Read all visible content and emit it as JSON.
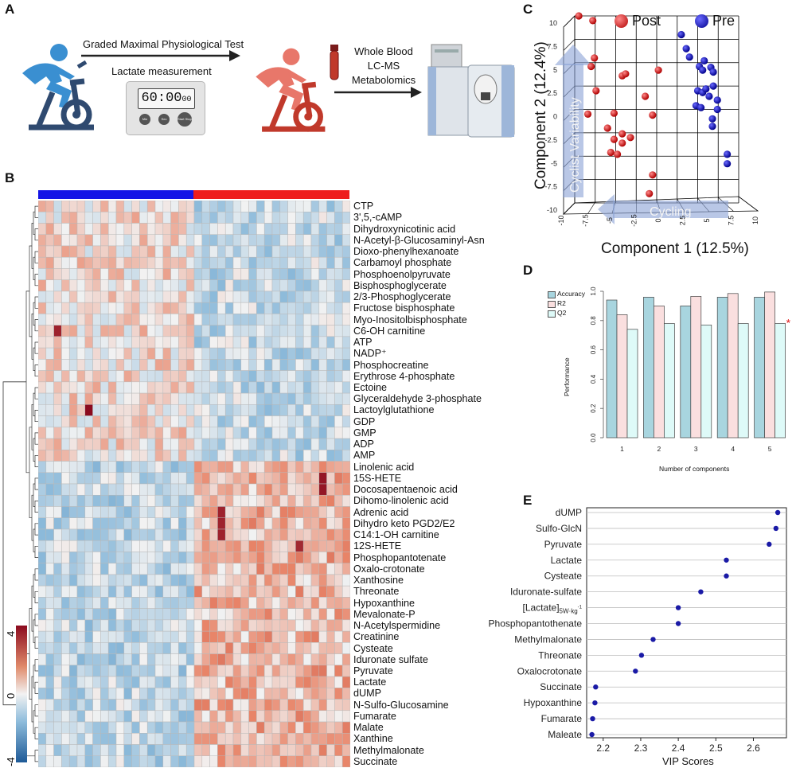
{
  "panel_letters": {
    "a": "A",
    "b": "B",
    "c": "C",
    "d": "D",
    "e": "E"
  },
  "panel_a": {
    "test_label": "Graded Maximal Physiological Test",
    "lactate_label": "Lactate measurement",
    "timer_display": "60:00",
    "timer_small": "00",
    "timer_buttons": [
      "Min",
      "Sec",
      "Start Stop"
    ],
    "blood_line1": "Whole Blood",
    "blood_line2": "LC-MS",
    "blood_line3": "Metabolomics",
    "colors": {
      "pre_cyclist": "#3a8fd1",
      "post_cyclist": "#e8776a",
      "bike_pre": "#2f4a70",
      "bike_post": "#c0392b"
    }
  },
  "chart_data": [
    {
      "type": "heatmap",
      "panel": "B",
      "rows": [
        "CTP",
        "3',5,-cAMP",
        "Dihydroxynicotinic acid",
        "N-Acetyl-β-Glucosaminyl-Asn",
        "Dioxo-phenylhexanoate",
        "Carbamoyl phosphate",
        "Phosphoenolpyruvate",
        "Bisphosphoglycerate",
        "2/3-Phosphoglycerate",
        "Fructose bisphosphate",
        "Myo-Inositolbisphosphate",
        "C6-OH carnitine",
        "ATP",
        "NADP⁺",
        "Phosphocreatine",
        "Erythrose 4-phosphate",
        "Ectoine",
        "Glyceraldehyde 3-phosphate",
        "Lactoylglutathione",
        "GDP",
        "GMP",
        "ADP",
        "AMP",
        "Linolenic acid",
        "15S-HETE",
        "Docosapentaenoic acid",
        "Dihomo-linolenic acid",
        "Adrenic acid",
        "Dihydro keto PGD2/E2",
        "C14:1-OH carnitine",
        "12S-HETE",
        "Phosphopantotenate",
        "Oxalo-crotonate",
        "Xanthosine",
        "Threonate",
        "Hypoxanthine",
        "Mevalonate-P",
        "N-Acetylspermidine",
        "Creatinine",
        "Cysteate",
        "Iduronate sulfate",
        "Pyruvate",
        "Lactate",
        "dUMP",
        "N-Sulfo-Glucosamine",
        "Fumarate",
        "Malate",
        "Xanthine",
        "Methylmalonate",
        "Succinate"
      ],
      "n_columns": 40,
      "groups": [
        {
          "name": "Pre",
          "columns": 20,
          "color": "#1515e6"
        },
        {
          "name": "Post",
          "columns": 20,
          "color": "#ee1c1c"
        }
      ],
      "scale": {
        "min": -4,
        "max": 4,
        "ticks": [
          "4",
          "0",
          "-4"
        ],
        "low_color": "#2166ac",
        "mid_color": "#f2f2f2",
        "high_color": "#8b0a1e"
      }
    },
    {
      "type": "scatter",
      "panel": "C",
      "xlabel": "Component 1 (12.5%)",
      "ylabel": "Component 2 (12.4%)",
      "x_ticks": [
        "-10",
        "-7.5",
        "-5",
        "-2.5",
        "0",
        "2.5",
        "5",
        "7.5",
        "10"
      ],
      "y_ticks": [
        "10",
        "7.5",
        "5",
        "2.5",
        "0",
        "-2.5",
        "-5",
        "-7.5",
        "-10"
      ],
      "arrow_vertical_label": "Cyclist Variability",
      "arrow_horizontal_label": "Cycling",
      "series": [
        {
          "name": "Post",
          "color": "#d81b1b",
          "points": [
            [
              -9.5,
              10
            ],
            [
              -7.8,
              9.5
            ],
            [
              -7.6,
              5.5
            ],
            [
              -8,
              4.6
            ],
            [
              -7.4,
              2
            ],
            [
              -8.4,
              -0.5
            ],
            [
              -4.2,
              3.6
            ],
            [
              -3.8,
              3.8
            ],
            [
              -5.2,
              -0.4
            ],
            [
              -6,
              -2
            ],
            [
              -5.2,
              -3.2
            ],
            [
              -5.6,
              -4.6
            ],
            [
              -4.8,
              -4.8
            ],
            [
              -4.2,
              -2.6
            ],
            [
              -4.2,
              -3.6
            ],
            [
              -3.2,
              -3
            ],
            [
              -1.4,
              1.4
            ],
            [
              -0.5,
              -0.6
            ],
            [
              -0.5,
              -7
            ],
            [
              -0.9,
              -9
            ],
            [
              0.2,
              4.2
            ]
          ]
        },
        {
          "name": "Pre",
          "color": "#1a1ab8",
          "points": [
            [
              3,
              8
            ],
            [
              3.6,
              6.5
            ],
            [
              4,
              5.6
            ],
            [
              5.8,
              5.2
            ],
            [
              5.2,
              4.6
            ],
            [
              6.6,
              4.5
            ],
            [
              6.9,
              4
            ],
            [
              5.6,
              4.2
            ],
            [
              5,
              2
            ],
            [
              5.6,
              1.8
            ],
            [
              6,
              2.2
            ],
            [
              6.4,
              1.4
            ],
            [
              6.9,
              2.5
            ],
            [
              7.4,
              1
            ],
            [
              7.4,
              0
            ],
            [
              6.8,
              -1
            ],
            [
              6.8,
              -1.8
            ],
            [
              8.6,
              -4.8
            ],
            [
              8.6,
              -5.8
            ],
            [
              4.8,
              0.4
            ],
            [
              5.4,
              0.2
            ]
          ]
        }
      ]
    },
    {
      "type": "bar",
      "panel": "D",
      "categories": [
        "1",
        "2",
        "3",
        "4",
        "5"
      ],
      "xlabel": "Number of components",
      "ylabel": "Performance",
      "ylim": [
        0,
        1.0
      ],
      "y_ticks": [
        "0.0",
        "0.2",
        "0.4",
        "0.6",
        "0.8",
        "1.0"
      ],
      "annotation": "*",
      "series": [
        {
          "name": "Accuracy",
          "color": "#a8d5df",
          "values": [
            0.94,
            0.96,
            0.9,
            0.96,
            0.96
          ]
        },
        {
          "name": "R2",
          "color": "#fadfdf",
          "values": [
            0.84,
            0.9,
            0.965,
            0.985,
            0.995
          ]
        },
        {
          "name": "Q2",
          "color": "#defaf8",
          "values": [
            0.74,
            0.78,
            0.77,
            0.78,
            0.78
          ]
        }
      ]
    },
    {
      "type": "scatter",
      "panel": "E",
      "xlabel": "VIP Scores",
      "x_ticks": [
        "2.2",
        "2.3",
        "2.4",
        "2.5",
        "2.6"
      ],
      "xlim": [
        2.156,
        2.688
      ],
      "categories": [
        "dUMP",
        "Sulfo-GlcN",
        "Pyruvate",
        "Lactate",
        "Cysteate",
        "Iduronate-sulfate",
        "[Lactate]5W·kg-1",
        "Phosphopantothenate",
        "Methylmalonate",
        "Threonate",
        "Oxalocrotonate",
        "Succinate",
        "Hypoxanthine",
        "Fumarate",
        "Maleate"
      ],
      "values": [
        2.665,
        2.66,
        2.642,
        2.528,
        2.528,
        2.46,
        2.4,
        2.4,
        2.333,
        2.302,
        2.286,
        2.18,
        2.178,
        2.172,
        2.17
      ],
      "color": "#1a1aa6"
    }
  ]
}
